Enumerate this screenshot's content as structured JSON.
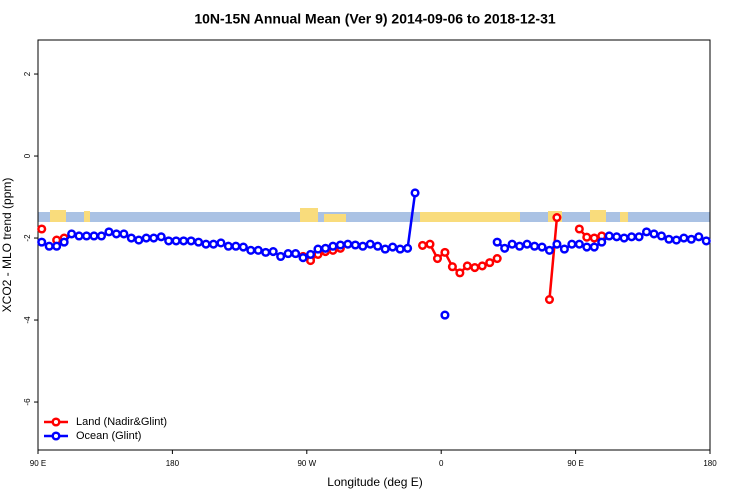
{
  "chart_data": {
    "type": "line",
    "title": "10N-15N Annual Mean (Ver 9)   2014-09-06 to 2018-12-31",
    "x_label": "Longitude (deg E)",
    "y_label": "XCO2 - MLO trend (ppm)",
    "xlim": [
      90,
      540
    ],
    "ylim": [
      -7.17,
      2.83
    ],
    "xticks": [
      {
        "value": 90,
        "label": "90 E"
      },
      180,
      {
        "value": 270,
        "label": "90 W"
      },
      {
        "value": 360,
        "label": "0"
      },
      {
        "value": 450,
        "label": "90 E"
      },
      {
        "value": 540,
        "label": "180"
      }
    ],
    "yticks": [
      -6,
      -4,
      -2,
      0,
      2
    ],
    "legend": "bottom-left",
    "x": [
      92.5,
      97.5,
      102.5,
      107.5,
      112.5,
      117.5,
      122.5,
      127.5,
      132.5,
      137.5,
      142.5,
      147.5,
      152.5,
      157.5,
      162.5,
      167.5,
      172.5,
      177.5,
      182.5,
      187.5,
      192.5,
      197.5,
      202.5,
      207.5,
      212.5,
      217.5,
      222.5,
      227.5,
      232.5,
      237.5,
      242.5,
      247.5,
      252.5,
      257.5,
      262.5,
      267.5,
      272.5,
      277.5,
      282.5,
      287.5,
      292.5,
      297.5,
      302.5,
      307.5,
      312.5,
      317.5,
      322.5,
      327.5,
      332.5,
      337.5,
      342.5,
      347.5,
      352.5,
      357.5,
      362.5,
      367.5,
      372.5,
      377.5,
      382.5,
      387.5,
      392.5,
      397.5,
      402.5,
      407.5,
      412.5,
      417.5,
      422.5,
      427.5,
      432.5,
      437.5,
      442.5,
      447.5,
      452.5,
      457.5,
      462.5,
      467.5,
      472.5,
      477.5,
      482.5,
      487.5,
      492.5,
      497.5,
      502.5,
      507.5,
      512.5,
      517.5,
      522.5,
      527.5,
      532.5,
      537.5
    ],
    "series": [
      {
        "name": "Land (Nadir&Glint)",
        "color": "#ff0000",
        "values": [
          -1.78,
          null,
          -2.05,
          -2.0,
          null,
          null,
          null,
          null,
          null,
          null,
          null,
          null,
          null,
          null,
          null,
          null,
          null,
          null,
          null,
          null,
          null,
          null,
          null,
          null,
          null,
          null,
          null,
          null,
          null,
          null,
          null,
          null,
          null,
          null,
          null,
          -2.45,
          -2.55,
          -2.4,
          -2.33,
          -2.3,
          -2.25,
          null,
          null,
          null,
          null,
          null,
          null,
          null,
          null,
          null,
          null,
          -2.18,
          -2.15,
          -2.5,
          -2.35,
          -2.7,
          -2.85,
          -2.68,
          -2.72,
          -2.68,
          -2.6,
          -2.5,
          null,
          null,
          null,
          null,
          null,
          null,
          -3.5,
          -1.5,
          null,
          null,
          -1.78,
          -1.98,
          -2.0,
          -1.95,
          null,
          null,
          null,
          null,
          null,
          null,
          null,
          null,
          null,
          null,
          null,
          null,
          null,
          null
        ]
      },
      {
        "name": "Ocean (Glint)",
        "color": "#0000ff",
        "values": [
          -2.1,
          -2.2,
          -2.2,
          -2.1,
          -1.9,
          -1.95,
          -1.95,
          -1.95,
          -1.95,
          -1.85,
          -1.9,
          -1.9,
          -2.0,
          -2.05,
          -2.0,
          -2.0,
          -1.97,
          -2.07,
          -2.07,
          -2.07,
          -2.07,
          -2.1,
          -2.15,
          -2.15,
          -2.12,
          -2.2,
          -2.2,
          -2.22,
          -2.3,
          -2.3,
          -2.35,
          -2.33,
          -2.45,
          -2.38,
          -2.38,
          -2.48,
          -2.4,
          -2.27,
          -2.25,
          -2.2,
          -2.17,
          -2.15,
          -2.17,
          -2.2,
          -2.15,
          -2.2,
          -2.27,
          -2.22,
          -2.27,
          -2.25,
          -0.9,
          null,
          null,
          null,
          -3.88,
          null,
          null,
          null,
          null,
          null,
          null,
          -2.1,
          -2.25,
          -2.15,
          -2.2,
          -2.15,
          -2.2,
          -2.22,
          -2.3,
          -2.15,
          -2.27,
          -2.15,
          -2.15,
          -2.22,
          -2.22,
          -2.1,
          -1.95,
          -1.97,
          -2.0,
          -1.97,
          -1.97,
          -1.85,
          -1.9,
          -1.95,
          -2.03,
          -2.05,
          -2.0,
          -2.03,
          -1.97,
          -2.07
        ]
      }
    ]
  }
}
